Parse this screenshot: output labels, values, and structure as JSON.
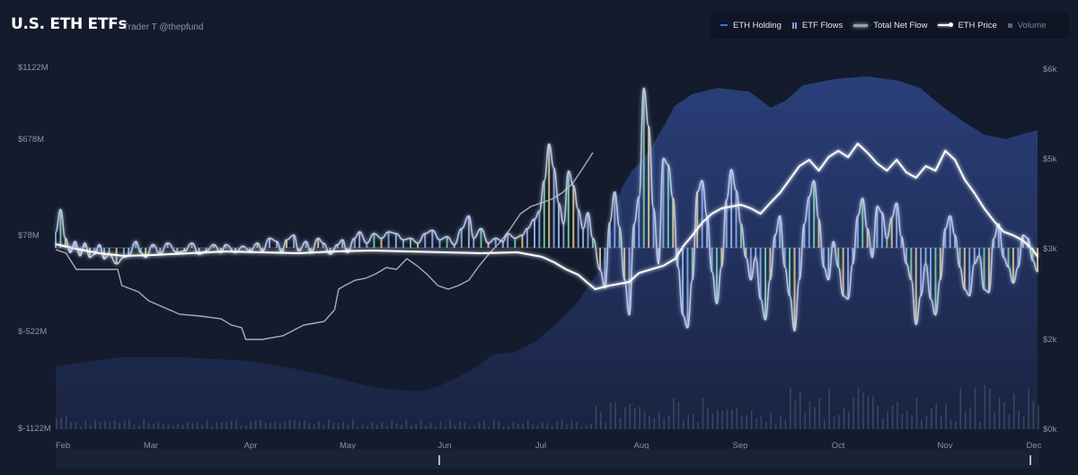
{
  "header": {
    "title": "U.S. ETH ETFs",
    "author": "Trader T @thepfund"
  },
  "legend": [
    {
      "label": "ETH Holding",
      "icon": "holding-line-icon"
    },
    {
      "label": "ETF Flows",
      "icon": "flows-bars-icon"
    },
    {
      "label": "Total Net Flow",
      "icon": "net-flow-glow-icon"
    },
    {
      "label": "ETH Price",
      "icon": "price-line-icon"
    },
    {
      "label": "Volume",
      "icon": "volume-square-icon"
    }
  ],
  "colors": {
    "background": "#141b2d",
    "holding": "#2a3f78",
    "flows_blue": "#8fb0f0",
    "flows_green": "#7dd9a8",
    "flows_yellow": "#e8cf8a",
    "price": "#ffffff",
    "net_flow": "#a8adb8",
    "volume": "#4a5268"
  },
  "chart_data": {
    "type": "bar",
    "x_months": [
      "Feb",
      "Mar",
      "Apr",
      "May",
      "Jun",
      "Jul",
      "Aug",
      "Sep",
      "Oct",
      "Nov",
      "Dec"
    ],
    "y_left_ticks": [
      "$1122M",
      "$678M",
      "$78M",
      "$-522M",
      "$-1122M"
    ],
    "y_left_range": [
      -1122,
      1122
    ],
    "y_right_ticks": [
      "$6k",
      "$5k",
      "$3k",
      "$2k",
      "$0k"
    ],
    "flows_baseline": 78,
    "flows": [
      [
        0,
        100
      ],
      [
        2,
        240
      ],
      [
        4,
        60
      ],
      [
        6,
        -30
      ],
      [
        8,
        40
      ],
      [
        10,
        -50
      ],
      [
        12,
        30
      ],
      [
        14,
        -60
      ],
      [
        16,
        -40
      ],
      [
        18,
        20
      ],
      [
        20,
        -70
      ],
      [
        22,
        -40
      ],
      [
        25,
        -100
      ],
      [
        28,
        -60
      ],
      [
        30,
        -50
      ],
      [
        33,
        40
      ],
      [
        35,
        -30
      ],
      [
        37,
        -60
      ],
      [
        40,
        20
      ],
      [
        43,
        -40
      ],
      [
        46,
        30
      ],
      [
        50,
        -30
      ],
      [
        53,
        -20
      ],
      [
        56,
        30
      ],
      [
        59,
        -40
      ],
      [
        62,
        -20
      ],
      [
        65,
        20
      ],
      [
        68,
        -30
      ],
      [
        70,
        20
      ],
      [
        74,
        -30
      ],
      [
        77,
        10
      ],
      [
        80,
        -20
      ],
      [
        83,
        30
      ],
      [
        85,
        -20
      ],
      [
        88,
        60
      ],
      [
        91,
        40
      ],
      [
        93,
        -30
      ],
      [
        95,
        50
      ],
      [
        98,
        80
      ],
      [
        100,
        -20
      ],
      [
        103,
        40
      ],
      [
        105,
        -30
      ],
      [
        108,
        60
      ],
      [
        110,
        30
      ],
      [
        113,
        -40
      ],
      [
        116,
        20
      ],
      [
        118,
        50
      ],
      [
        120,
        -30
      ],
      [
        123,
        60
      ],
      [
        125,
        100
      ],
      [
        128,
        30
      ],
      [
        131,
        90
      ],
      [
        134,
        60
      ],
      [
        137,
        100
      ],
      [
        140,
        90
      ],
      [
        143,
        50
      ],
      [
        146,
        60
      ],
      [
        149,
        30
      ],
      [
        152,
        90
      ],
      [
        155,
        110
      ],
      [
        158,
        50
      ],
      [
        161,
        70
      ],
      [
        164,
        20
      ],
      [
        167,
        120
      ],
      [
        170,
        200
      ],
      [
        172,
        60
      ],
      [
        175,
        120
      ],
      [
        178,
        30
      ],
      [
        181,
        60
      ],
      [
        184,
        40
      ],
      [
        186,
        90
      ],
      [
        189,
        60
      ],
      [
        192,
        80
      ],
      [
        194,
        120
      ],
      [
        197,
        180
      ],
      [
        199,
        230
      ],
      [
        201,
        420
      ],
      [
        203,
        650
      ],
      [
        205,
        500
      ],
      [
        207,
        280
      ],
      [
        209,
        150
      ],
      [
        211,
        480
      ],
      [
        213,
        390
      ],
      [
        215,
        240
      ],
      [
        217,
        120
      ],
      [
        219,
        220
      ],
      [
        221,
        60
      ],
      [
        224,
        -140
      ],
      [
        226,
        -250
      ],
      [
        228,
        160
      ],
      [
        230,
        350
      ],
      [
        232,
        130
      ],
      [
        234,
        -200
      ],
      [
        236,
        -420
      ],
      [
        238,
        150
      ],
      [
        240,
        320
      ],
      [
        242,
        1000
      ],
      [
        244,
        760
      ],
      [
        246,
        250
      ],
      [
        248,
        -100
      ],
      [
        250,
        560
      ],
      [
        252,
        520
      ],
      [
        254,
        310
      ],
      [
        256,
        -120
      ],
      [
        258,
        -420
      ],
      [
        260,
        -500
      ],
      [
        262,
        -200
      ],
      [
        264,
        350
      ],
      [
        266,
        420
      ],
      [
        268,
        200
      ],
      [
        270,
        -150
      ],
      [
        272,
        -350
      ],
      [
        274,
        -120
      ],
      [
        276,
        300
      ],
      [
        278,
        490
      ],
      [
        280,
        360
      ],
      [
        282,
        150
      ],
      [
        284,
        -60
      ],
      [
        286,
        -200
      ],
      [
        288,
        -60
      ],
      [
        290,
        -320
      ],
      [
        292,
        -450
      ],
      [
        294,
        -200
      ],
      [
        296,
        80
      ],
      [
        298,
        200
      ],
      [
        300,
        -120
      ],
      [
        302,
        -300
      ],
      [
        304,
        -520
      ],
      [
        306,
        -200
      ],
      [
        308,
        150
      ],
      [
        310,
        320
      ],
      [
        312,
        420
      ],
      [
        314,
        180
      ],
      [
        316,
        -120
      ],
      [
        318,
        -200
      ],
      [
        320,
        40
      ],
      [
        322,
        -120
      ],
      [
        324,
        -300
      ],
      [
        326,
        -320
      ],
      [
        328,
        -100
      ],
      [
        330,
        200
      ],
      [
        332,
        310
      ],
      [
        334,
        120
      ],
      [
        336,
        -60
      ],
      [
        338,
        260
      ],
      [
        340,
        220
      ],
      [
        342,
        60
      ],
      [
        344,
        190
      ],
      [
        346,
        280
      ],
      [
        348,
        70
      ],
      [
        350,
        -100
      ],
      [
        352,
        -200
      ],
      [
        354,
        -480
      ],
      [
        356,
        -300
      ],
      [
        358,
        -100
      ],
      [
        360,
        -320
      ],
      [
        362,
        -420
      ],
      [
        364,
        -200
      ],
      [
        366,
        120
      ],
      [
        368,
        200
      ],
      [
        370,
        80
      ],
      [
        372,
        -120
      ],
      [
        374,
        -260
      ],
      [
        376,
        -300
      ],
      [
        378,
        -100
      ],
      [
        380,
        -50
      ],
      [
        382,
        -260
      ],
      [
        384,
        -280
      ],
      [
        386,
        60
      ],
      [
        388,
        150
      ],
      [
        390,
        -60
      ],
      [
        392,
        -120
      ],
      [
        394,
        -220
      ],
      [
        396,
        -120
      ],
      [
        398,
        80
      ],
      [
        400,
        60
      ],
      [
        402,
        -80
      ],
      [
        404,
        -150
      ]
    ]
  }
}
